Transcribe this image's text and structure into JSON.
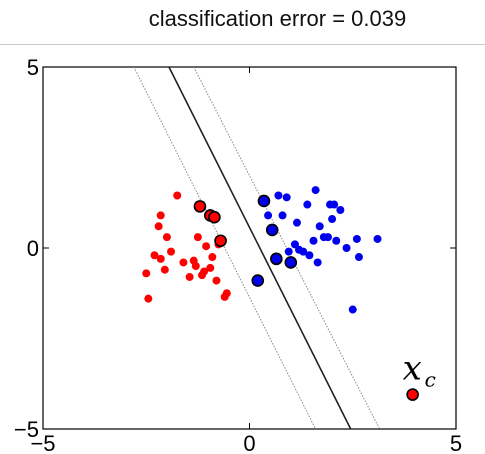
{
  "chart_data": {
    "type": "scatter",
    "title": "classification error = 0.039",
    "xlim": [
      -5,
      5
    ],
    "ylim": [
      -5,
      5
    ],
    "x_ticks": [
      "−5",
      "0",
      "5"
    ],
    "y_ticks": [
      "5",
      "0",
      "−5"
    ],
    "grid": false,
    "colors": {
      "class_red": "#ff0000",
      "class_blue": "#0000ee",
      "boundary": "#222222",
      "margin": "#888888"
    },
    "series": [
      {
        "class": "red",
        "points": [
          [
            -2.5,
            -0.7
          ],
          [
            -2.45,
            -1.4
          ],
          [
            -2.3,
            -0.2
          ],
          [
            -2.2,
            0.6
          ],
          [
            -2.15,
            -0.3
          ],
          [
            -2.15,
            0.9
          ],
          [
            -2.05,
            -0.6
          ],
          [
            -2.0,
            0.3
          ],
          [
            -1.9,
            -0.1
          ],
          [
            -1.75,
            1.45
          ],
          [
            -1.6,
            -0.4
          ],
          [
            -1.45,
            -0.8
          ],
          [
            -1.35,
            -0.35
          ],
          [
            -1.3,
            -0.5
          ],
          [
            -1.25,
            0.3
          ],
          [
            -1.15,
            -0.75
          ],
          [
            -1.1,
            -0.65
          ],
          [
            -1.05,
            0.05
          ],
          [
            -0.95,
            -0.55
          ],
          [
            -0.9,
            -0.25
          ],
          [
            -0.8,
            -0.9
          ],
          [
            -0.75,
            0.1
          ],
          [
            -0.6,
            -1.35
          ],
          [
            -0.55,
            -1.25
          ],
          [
            -1.2,
            1.15
          ],
          [
            -0.95,
            0.9
          ],
          [
            -0.85,
            0.85
          ],
          [
            -0.7,
            0.2
          ]
        ],
        "support_vectors": [
          [
            -1.2,
            1.15
          ],
          [
            -0.95,
            0.9
          ],
          [
            -0.85,
            0.85
          ],
          [
            -0.7,
            0.2
          ]
        ]
      },
      {
        "class": "blue",
        "points": [
          [
            0.2,
            -0.9
          ],
          [
            0.35,
            1.3
          ],
          [
            0.45,
            0.9
          ],
          [
            0.55,
            0.5
          ],
          [
            0.65,
            -0.3
          ],
          [
            0.7,
            1.45
          ],
          [
            0.8,
            0.9
          ],
          [
            0.9,
            1.4
          ],
          [
            0.95,
            -0.1
          ],
          [
            1.0,
            -0.4
          ],
          [
            1.1,
            0.1
          ],
          [
            1.15,
            0.7
          ],
          [
            1.3,
            -0.1
          ],
          [
            1.4,
            1.2
          ],
          [
            1.45,
            -0.2
          ],
          [
            1.55,
            0.2
          ],
          [
            1.6,
            1.6
          ],
          [
            1.65,
            -0.4
          ],
          [
            1.7,
            0.6
          ],
          [
            1.9,
            0.3
          ],
          [
            1.95,
            1.2
          ],
          [
            2.0,
            0.8
          ],
          [
            2.05,
            1.2
          ],
          [
            2.1,
            0.2
          ],
          [
            2.2,
            1.05
          ],
          [
            2.35,
            0.0
          ],
          [
            2.5,
            -1.7
          ],
          [
            2.6,
            0.25
          ],
          [
            2.65,
            -0.25
          ],
          [
            3.1,
            0.25
          ],
          [
            1.8,
            0.3
          ],
          [
            1.2,
            -0.05
          ]
        ],
        "support_vectors": [
          [
            0.2,
            -0.9
          ],
          [
            0.35,
            1.3
          ],
          [
            0.55,
            0.5
          ],
          [
            0.65,
            -0.3
          ],
          [
            1.0,
            -0.4
          ]
        ]
      }
    ],
    "decision_boundary": [
      [
        -1.95,
        5
      ],
      [
        2.45,
        -5
      ]
    ],
    "margin_lines": [
      [
        [
          -2.8,
          5
        ],
        [
          1.6,
          -5
        ]
      ],
      [
        [
          -1.35,
          5
        ],
        [
          3.15,
          -5
        ]
      ]
    ],
    "test_point": {
      "x": 3.95,
      "y": -4.05,
      "color": "#ff0000",
      "label": "x",
      "label_sub": "c"
    }
  }
}
